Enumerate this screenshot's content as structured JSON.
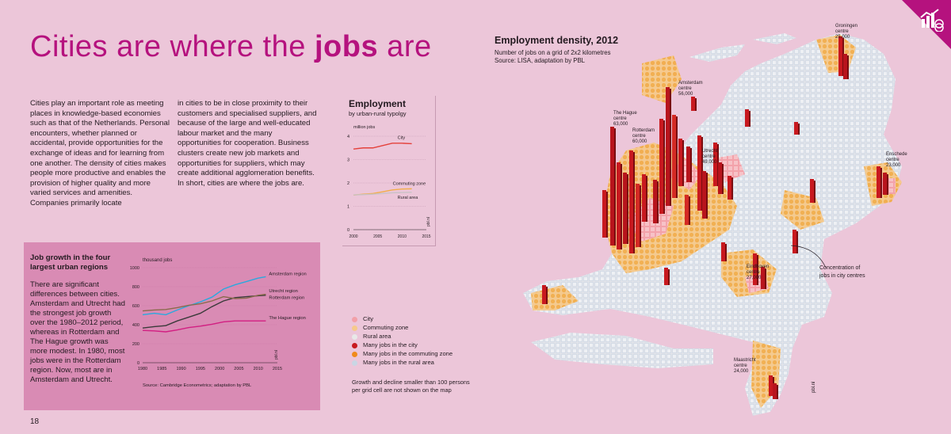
{
  "page": {
    "title_prefix": "Cities are where the ",
    "title_bold": "jobs",
    "title_suffix": " are",
    "page_number": "18",
    "body_col1": "Cities play an important role as meeting places in knowledge-based economies such as that of the Netherlands. Personal encounters, whether planned or accidental, provide opportunities for the exchange of ideas and for learning from one another. The density of cities makes people more productive and enables the provision of higher quality and more varied services and amenities. Companies primarily locate",
    "body_col2": "in cities to be in close proximity to their customers and specialised suppliers, and because of the large and well-educated labour market and the many opportunities for cooperation. Business clusters create new job markets and opportunities for suppliers, which may create additional agglomeration benefits. In short, cities are where the jobs are."
  },
  "colors": {
    "accent": "#b5127e",
    "panel": "#d98bb4",
    "background": "#ecc6d9",
    "amsterdam": "#2aa9de",
    "utrecht": "#3a3a3a",
    "rotterdam": "#8a6a4c",
    "the_hague": "#d21f82",
    "city": "#e4413b",
    "commuting": "#f2ad4a",
    "rural": "#dcdcdc"
  },
  "job_growth": {
    "title": "Job growth in the four largest urban regions",
    "text": "There are significant differences between cities. Amsterdam and Utrecht had the strongest job growth over the 1980–2012 period, whereas in Rotterdam and The Hague growth was more modest. In 1980, most jobs were in the Rotterdam region. Now, most are in Amsterdam and Utrecht.",
    "source": "Source: Cambridge Econometrics; adaptation by PBL",
    "watermark": "pbl.nl"
  },
  "employment": {
    "title": "Employment",
    "subtitle": "by urban-rural typolgy",
    "watermark": "pbl.nl"
  },
  "map": {
    "title": "Employment density, 2012",
    "subtitle1": "Number of jobs on a grid of 2x2 kilometres",
    "subtitle2": "Source: LISA, adaptation by PBL",
    "watermark": "pbl.nl",
    "labels": [
      {
        "name": "Groningen",
        "l2": "centre",
        "l3": "25,000"
      },
      {
        "name": "Amsterdam",
        "l2": "centre",
        "l3": "56,000"
      },
      {
        "name": "The Hague",
        "l2": "centre",
        "l3": "63,000"
      },
      {
        "name": "Rotterdam",
        "l2": "centre",
        "l3": "60,000"
      },
      {
        "name": "Utrecht",
        "l2": "centre",
        "l3": "49,000"
      },
      {
        "name": "Enschede",
        "l2": "centre",
        "l3": "23,000"
      },
      {
        "name": "Eindhoven",
        "l2": "centre",
        "l3": "27,000"
      },
      {
        "name": "Maastricht",
        "l2": "centre",
        "l3": "24,000"
      }
    ],
    "concentration_l1": "Concentration of",
    "concentration_l2": "jobs in city centres"
  },
  "legend": {
    "items": [
      {
        "label": "City",
        "color": "#f2a0a8"
      },
      {
        "label": "Commuting zone",
        "color": "#f6c98a"
      },
      {
        "label": "Rural area",
        "color": "#e8e8e8"
      },
      {
        "label": "Many jobs in the city",
        "color": "#c8191f"
      },
      {
        "label": "Many jobs in the commuting zone",
        "color": "#f08a1c"
      },
      {
        "label": "Many jobs in the rural area",
        "color": "#c9d6e4"
      }
    ],
    "note": "Growth and decline smaller than 100 persons per grid cell are not shown on the map"
  },
  "chart_data": [
    {
      "type": "line",
      "title": "Job growth in the four largest urban regions",
      "ylabel": "thousand jobs",
      "x": [
        1980,
        1983,
        1986,
        1989,
        1992,
        1995,
        1998,
        2001,
        2004,
        2007,
        2010,
        2012
      ],
      "xticks": [
        1980,
        1985,
        1990,
        1995,
        2000,
        2005,
        2010,
        2015
      ],
      "xlim": [
        1980,
        2015
      ],
      "yticks": [
        0,
        200,
        400,
        600,
        800,
        1000
      ],
      "ylim": [
        0,
        1000
      ],
      "series": [
        {
          "name": "Amsterdam region",
          "color": "#2aa9de",
          "values": [
            505,
            520,
            505,
            555,
            600,
            640,
            690,
            775,
            820,
            855,
            890,
            905
          ]
        },
        {
          "name": "Utrecht region",
          "color": "#3a3a3a",
          "values": [
            365,
            380,
            390,
            440,
            480,
            520,
            590,
            650,
            685,
            695,
            705,
            710
          ]
        },
        {
          "name": "Rotterdam region",
          "color": "#8a6a4c",
          "values": [
            545,
            555,
            560,
            580,
            605,
            620,
            650,
            695,
            675,
            680,
            710,
            720
          ]
        },
        {
          "name": "The Hague region",
          "color": "#d21f82",
          "values": [
            340,
            335,
            325,
            345,
            370,
            385,
            405,
            430,
            440,
            440,
            440,
            440
          ]
        }
      ]
    },
    {
      "type": "line",
      "title": "Employment",
      "subtitle": "by urban-rural typolgy",
      "ylabel": "million jobs",
      "x": [
        2000,
        2002,
        2004,
        2006,
        2008,
        2010,
        2012
      ],
      "xticks": [
        2000,
        2005,
        2010,
        2015
      ],
      "xlim": [
        2000,
        2015
      ],
      "yticks": [
        0,
        1,
        2,
        3,
        4
      ],
      "ylim": [
        0,
        4
      ],
      "series": [
        {
          "name": "City",
          "color": "#e4413b",
          "values": [
            3.45,
            3.5,
            3.5,
            3.6,
            3.7,
            3.7,
            3.68
          ]
        },
        {
          "name": "Commuting zone",
          "color": "#f2ad4a",
          "values": [
            1.48,
            1.52,
            1.55,
            1.62,
            1.7,
            1.74,
            1.75
          ]
        },
        {
          "name": "Rural area",
          "color": "#c9c2c6",
          "values": [
            1.49,
            1.5,
            1.52,
            1.55,
            1.58,
            1.59,
            1.6
          ]
        }
      ]
    }
  ]
}
